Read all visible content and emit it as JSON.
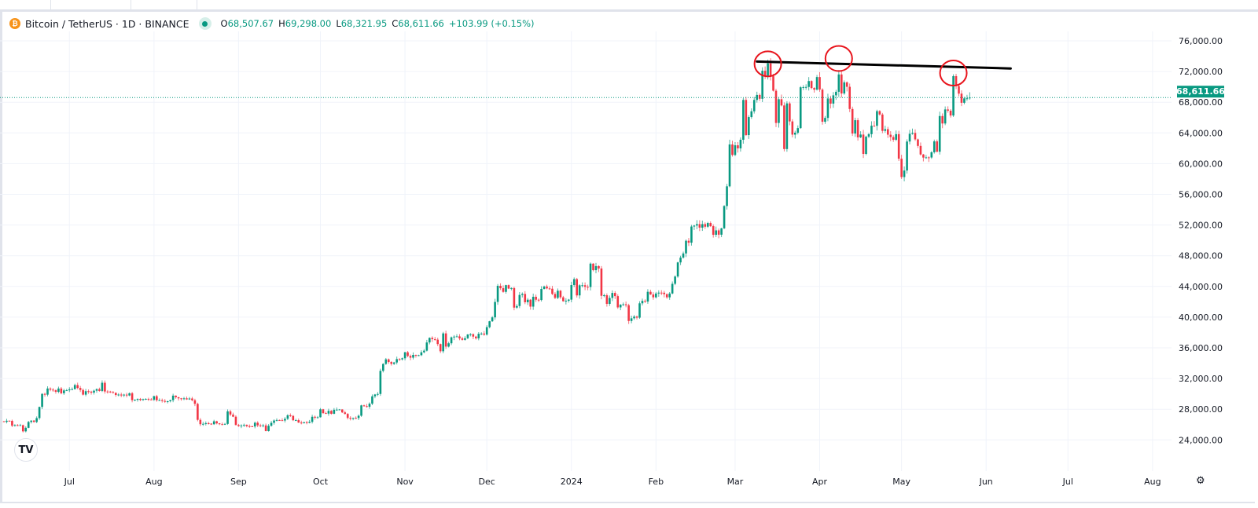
{
  "legend": {
    "symbol": "Bitcoin / TetherUS · 1D · BINANCE",
    "open_label": "O",
    "open": "68,507.67",
    "high_label": "H",
    "high": "69,298.00",
    "low_label": "L",
    "low": "68,321.95",
    "close_label": "C",
    "close": "68,611.66",
    "change": "+103.99 (+0.15%)"
  },
  "colors": {
    "up": "#089981",
    "down": "#f23645",
    "grid": "#f0f3fa",
    "annotation_circle": "#e8141c",
    "trendline": "#000000",
    "price_label_bg": "#089981"
  },
  "icons": {
    "logo": "tradingview-logo-icon",
    "settings": "settings-icon",
    "coin": "bitcoin-icon"
  },
  "logo_text": "TV",
  "chart_data": {
    "type": "candlestick",
    "title": "Bitcoin / TetherUS · 1D · BINANCE",
    "start_date": "2023-06-07",
    "interval": "1D",
    "closes_by_month": {
      "2023-06": [
        26350,
        26500,
        26480,
        25850,
        25930,
        25900,
        25920,
        25120,
        25580,
        26340,
        26520,
        26340,
        26840,
        28300,
        30000,
        29900,
        30700,
        30550,
        30470,
        30270,
        30700,
        30080,
        30450,
        30470
      ],
      "2023-07": [
        30590,
        30620,
        31150,
        30770,
        30510,
        29900,
        30350,
        30290,
        30170,
        30410,
        30620,
        30380,
        31450,
        30310,
        30300,
        30230,
        30140,
        29860,
        29910,
        29800,
        29900,
        29790,
        30080,
        29180,
        29230,
        29350,
        29210,
        29320,
        29350,
        29270,
        29230
      ],
      "2023-08": [
        29700,
        29170,
        29180,
        29080,
        29040,
        29040,
        29180,
        29770,
        29560,
        29420,
        29400,
        29420,
        29280,
        29400,
        29170,
        28700,
        26620,
        26050,
        26100,
        26190,
        26120,
        26050,
        26430,
        26160,
        26060,
        26010,
        26090,
        27720,
        27300,
        27030,
        25940
      ],
      "2023-09": [
        25800,
        25870,
        25970,
        25800,
        25780,
        25750,
        26240,
        25900,
        25840,
        25890,
        25160,
        25840,
        26230,
        26530,
        26600,
        26570,
        26530,
        26750,
        27210,
        27130,
        26570,
        26580,
        26260,
        26250,
        26300,
        26220,
        26350,
        27020,
        26900,
        26960
      ],
      "2023-10": [
        27990,
        27500,
        27430,
        27790,
        27410,
        27930,
        27950,
        27970,
        27590,
        27390,
        26870,
        26750,
        26860,
        26850,
        27150,
        28500,
        28400,
        28320,
        28720,
        29680,
        29920,
        29990,
        33000,
        33900,
        34500,
        34150,
        33910,
        34090,
        34530,
        34500,
        34640
      ],
      "2023-11": [
        35420,
        34940,
        34720,
        35080,
        35040,
        35040,
        35420,
        35630,
        36700,
        37300,
        37130,
        37060,
        36490,
        35550,
        37880,
        36160,
        36590,
        37370,
        37460,
        37490,
        37230,
        37040,
        37250,
        37740,
        37780,
        37460,
        37240,
        37830,
        37860,
        37720
      ],
      "2023-12": [
        38690,
        39460,
        39970,
        41980,
        44080,
        43770,
        43290,
        44170,
        43720,
        43790,
        41240,
        41450,
        42890,
        43020,
        41940,
        42270,
        41370,
        42650,
        42270,
        42230,
        43670,
        43990,
        43740,
        43700,
        43020,
        42510,
        43440,
        42580,
        42070,
        42140,
        42280
      ],
      "2024-01": [
        44180,
        44950,
        42830,
        44150,
        44160,
        43950,
        43920,
        46970,
        46120,
        46650,
        46340,
        42780,
        42850,
        41730,
        42500,
        43150,
        42740,
        41270,
        41620,
        41670,
        41550,
        39500,
        39850,
        40070,
        39930,
        41800,
        42120,
        42030,
        43300,
        42950,
        42580
      ],
      "2024-02": [
        43080,
        43190,
        43180,
        42990,
        42580,
        43080,
        44340,
        45290,
        47130,
        47750,
        48300,
        49950,
        49700,
        51800,
        51930,
        52120,
        51660,
        52120,
        51780,
        52260,
        51850,
        50730,
        51300,
        50740,
        51570,
        54480,
        57040,
        62500,
        61130
      ],
      "2024-03": [
        62390,
        61990,
        63110,
        68300,
        63720,
        66070,
        66820,
        68300,
        68950,
        68450,
        72100,
        71450,
        73070,
        71390,
        69500,
        65300,
        68390,
        67580,
        61900,
        67850,
        65500,
        63780,
        64030,
        64630,
        69950,
        69970,
        69990,
        70760,
        69850,
        69640,
        71280
      ],
      "2024-04": [
        69650,
        65460,
        65960,
        68490,
        67820,
        68900,
        69360,
        71620,
        69140,
        70590,
        70010,
        67120,
        63920,
        65660,
        63420,
        63790,
        61270,
        63510,
        63840,
        64940,
        64930,
        66840,
        66400,
        64270,
        64490,
        63770,
        63460,
        63110,
        63840,
        60640
      ],
      "2024-05": [
        58250,
        59100,
        62880,
        63890,
        64000,
        63160,
        62310,
        61190,
        60790,
        60820,
        60800,
        61480,
        62900,
        61550,
        66200,
        65230,
        67060,
        66900,
        66270,
        71400,
        70100,
        69120,
        67930,
        68500,
        68507.67,
        68611.66
      ]
    },
    "last_candle": {
      "open": 68507.67,
      "high": 69298.0,
      "low": 68321.95,
      "close": 68611.66
    },
    "last_price_label": "68,611.66",
    "y_ticks": [
      "76,000.00",
      "72,000.00",
      "68,000.00",
      "64,000.00",
      "60,000.00",
      "56,000.00",
      "52,000.00",
      "48,000.00",
      "44,000.00",
      "40,000.00",
      "36,000.00",
      "32,000.00",
      "28,000.00",
      "24,000.00"
    ],
    "y_tick_values": [
      76000,
      72000,
      68000,
      64000,
      60000,
      56000,
      52000,
      48000,
      44000,
      40000,
      36000,
      32000,
      28000,
      24000
    ],
    "x_ticks": [
      {
        "label": "Jul",
        "date": "2023-07-01"
      },
      {
        "label": "Aug",
        "date": "2023-08-01"
      },
      {
        "label": "Sep",
        "date": "2023-09-01"
      },
      {
        "label": "Oct",
        "date": "2023-10-01"
      },
      {
        "label": "Nov",
        "date": "2023-11-01"
      },
      {
        "label": "Dec",
        "date": "2023-12-01"
      },
      {
        "label": "2024",
        "date": "2024-01-01"
      },
      {
        "label": "Feb",
        "date": "2024-02-01"
      },
      {
        "label": "Mar",
        "date": "2024-03-01"
      },
      {
        "label": "Apr",
        "date": "2024-04-01"
      },
      {
        "label": "May",
        "date": "2024-05-01"
      },
      {
        "label": "Jun",
        "date": "2024-06-01"
      },
      {
        "label": "Jul",
        "date": "2024-07-01"
      },
      {
        "label": "Aug",
        "date": "2024-08-01"
      }
    ],
    "ylim": [
      22000,
      78000
    ],
    "grid": true,
    "annotations": {
      "trendline": {
        "from": {
          "date": "2024-03-09",
          "price": 73300
        },
        "to": {
          "date": "2024-06-10",
          "price": 72400
        }
      },
      "circles": [
        {
          "date": "2024-03-13",
          "price": 73000
        },
        {
          "date": "2024-04-08",
          "price": 73700
        },
        {
          "date": "2024-05-20",
          "price": 71800
        }
      ]
    }
  }
}
